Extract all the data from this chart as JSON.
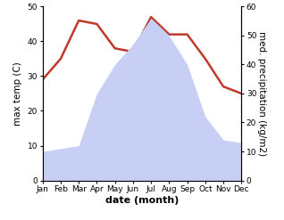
{
  "months": [
    "Jan",
    "Feb",
    "Mar",
    "Apr",
    "May",
    "Jun",
    "Jul",
    "Aug",
    "Sep",
    "Oct",
    "Nov",
    "Dec"
  ],
  "temperature": [
    29,
    35,
    46,
    45,
    38,
    37,
    47,
    42,
    42,
    35,
    27,
    25
  ],
  "precipitation": [
    10,
    11,
    12,
    30,
    40,
    47,
    56,
    50,
    40,
    22,
    14,
    13
  ],
  "temp_color": "#c0392b",
  "precip_fill_color": "#c8cff5",
  "left_ylabel": "max temp (C)",
  "right_ylabel": "med. precipitation (kg/m2)",
  "xlabel": "date (month)",
  "left_ylim": [
    0,
    50
  ],
  "right_ylim": [
    0,
    60
  ],
  "left_yticks": [
    0,
    10,
    20,
    30,
    40,
    50
  ],
  "right_yticks": [
    0,
    10,
    20,
    30,
    40,
    50,
    60
  ],
  "bg_color": "#ffffff",
  "temp_linewidth": 1.8,
  "xlabel_fontsize": 8,
  "ylabel_fontsize": 7.5,
  "tick_fontsize": 6.5
}
